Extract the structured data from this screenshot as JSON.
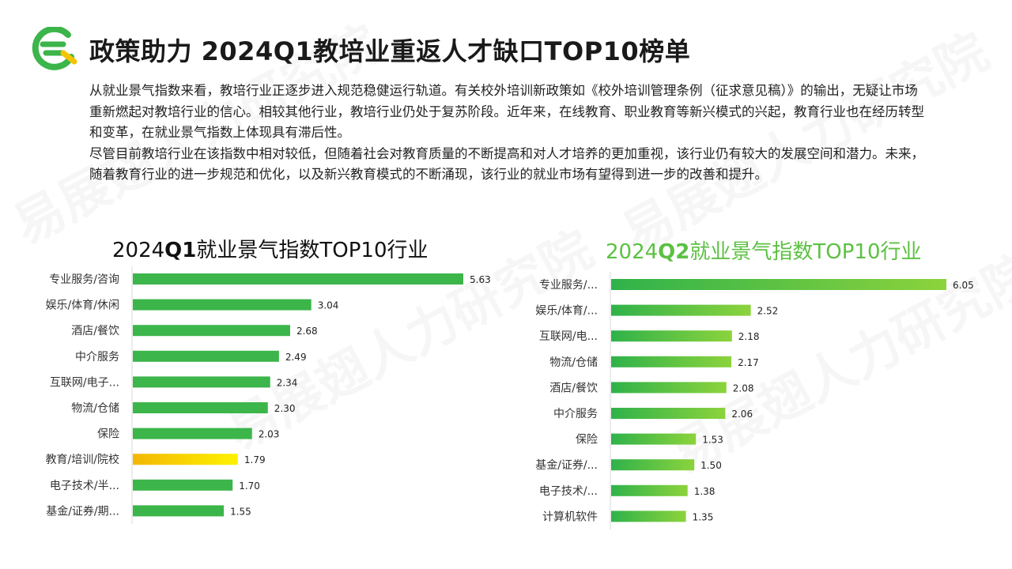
{
  "header": {
    "title": "政策助力 2024Q1教培业重返人才缺口TOP10榜单"
  },
  "watermark": {
    "text": "易展翅人力研究院"
  },
  "intro": {
    "paragraph1": "从就业景气指数来看，教培行业正逐步进入规范稳健运行轨道。有关校外培训新政策如《校外培训管理条例（征求意见稿）》的输出，无疑让市场重新燃起对教培行业的信心。相较其他行业，教培行业仍处于复苏阶段。近年来，在线教育、职业教育等新兴模式的兴起，教育行业也在经历转型和变革，在就业景气指数上体现具有滞后性。",
    "paragraph2": "尽管目前教培行业在该指数中相对较低，但随着社会对教育质量的不断提高和对人才培养的更加重视，该行业仍有较大的发展空间和潜力。未来，随着教育行业的进一步规范和优化，以及新兴教育模式的不断涌现，该行业的就业市场有望得到进一步的改善和提升。"
  },
  "colors": {
    "bar_green": "#3cb54a",
    "highlight_start": "#f2b705",
    "highlight_end": "#fff200",
    "q2_gradient_start": "#2fb24a",
    "q2_gradient_end": "#8cd33c",
    "q2_title": "#5cc142"
  },
  "chart_data": [
    {
      "type": "bar",
      "orientation": "horizontal",
      "title_prefix": "2024",
      "title_bold": "Q1",
      "title_suffix": "就业景气指数TOP10行业",
      "categories": [
        "专业服务/咨询",
        "娱乐/体育/休闲",
        "酒店/餐饮",
        "中介服务",
        "互联网/电子...",
        "物流/仓储",
        "保险",
        "教育/培训/院校",
        "电子技术/半...",
        "基金/证券/期..."
      ],
      "values": [
        5.63,
        3.04,
        2.68,
        2.49,
        2.34,
        2.3,
        2.03,
        1.79,
        1.7,
        1.55
      ],
      "value_labels": [
        "5.63",
        "3.04",
        "2.68",
        "2.49",
        "2.34",
        "2.30",
        "2.03",
        "1.79",
        "1.70",
        "1.55"
      ],
      "highlight_category": "教育/培训/院校",
      "xlim": [
        0,
        5.63
      ],
      "grid": false,
      "legend": "none"
    },
    {
      "type": "bar",
      "orientation": "horizontal",
      "title_prefix": "2024",
      "title_bold": "Q2",
      "title_suffix": "就业景气指数TOP10行业",
      "categories": [
        "专业服务/...",
        "娱乐/体育/...",
        "互联网/电...",
        "物流/仓储",
        "酒店/餐饮",
        "中介服务",
        "保险",
        "基金/证券/...",
        "电子技术/...",
        "计算机软件"
      ],
      "values": [
        6.05,
        2.52,
        2.18,
        2.17,
        2.08,
        2.06,
        1.53,
        1.5,
        1.38,
        1.35
      ],
      "value_labels": [
        "6.05",
        "2.52",
        "2.18",
        "2.17",
        "2.08",
        "2.06",
        "1.53",
        "1.50",
        "1.38",
        "1.35"
      ],
      "xlim": [
        0,
        6.05
      ],
      "grid": false,
      "legend": "none"
    }
  ]
}
